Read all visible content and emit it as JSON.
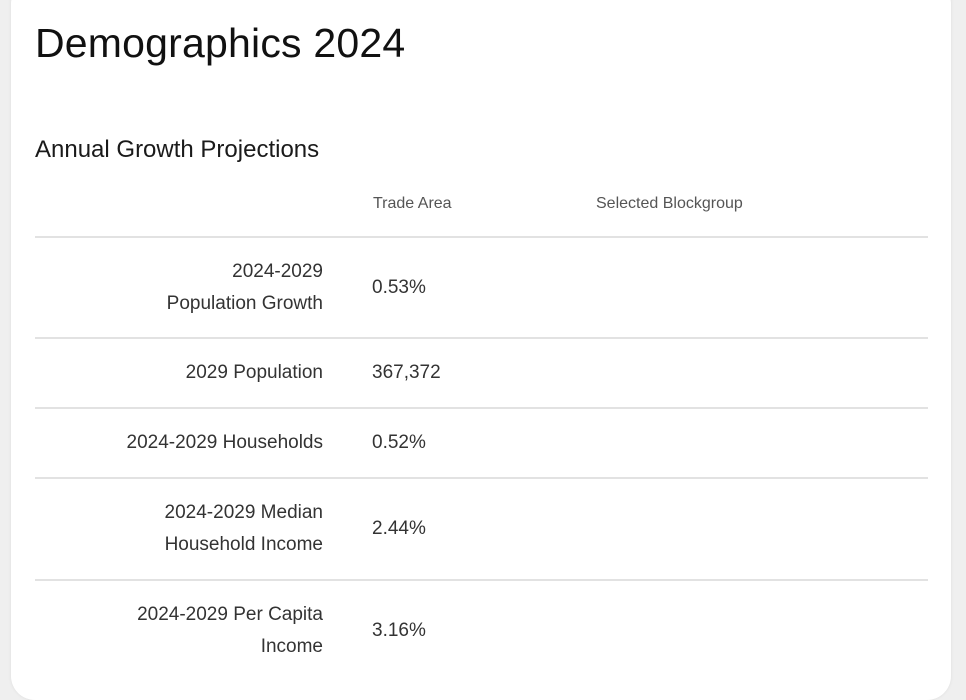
{
  "title": "Demographics 2024",
  "section": {
    "title": "Annual Growth Projections",
    "columns": [
      "Trade Area",
      "Selected Blockgroup"
    ],
    "rows": [
      {
        "label": "2024-2029 Population Growth",
        "trade_area": "0.53%",
        "blockgroup": ""
      },
      {
        "label": "2029 Population",
        "trade_area": "367,372",
        "blockgroup": ""
      },
      {
        "label": "2024-2029 Households",
        "trade_area": "0.52%",
        "blockgroup": ""
      },
      {
        "label": "2024-2029 Median Household Income",
        "trade_area": "2.44%",
        "blockgroup": ""
      },
      {
        "label": "2024-2029 Per Capita Income",
        "trade_area": "3.16%",
        "blockgroup": ""
      }
    ]
  }
}
